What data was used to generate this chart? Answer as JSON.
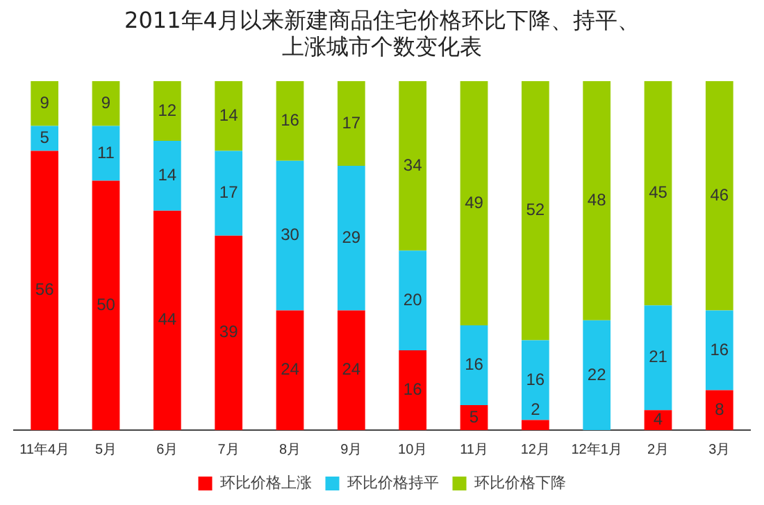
{
  "chart_data": {
    "type": "bar",
    "title": "2011年4月以来新建商品住宅价格环比下降、持平、上涨城市个数变化表",
    "categories": [
      "11年4月",
      "5月",
      "6月",
      "7月",
      "8月",
      "9月",
      "10月",
      "11月",
      "12月",
      "12年1月",
      "2月",
      "3月"
    ],
    "series": [
      {
        "name": "环比价格上涨",
        "color": "#ff0000",
        "values": [
          56,
          50,
          44,
          39,
          24,
          24,
          16,
          5,
          2,
          0,
          4,
          8
        ],
        "value_labels": [
          "56",
          "50",
          "44",
          "39",
          "24",
          "24",
          "16",
          "5",
          "2",
          null,
          "4",
          "8"
        ]
      },
      {
        "name": "环比价格持平",
        "color": "#22c8ee",
        "values": [
          5,
          11,
          14,
          17,
          30,
          29,
          20,
          16,
          16,
          22,
          21,
          16
        ],
        "value_labels": [
          "5",
          "11",
          "14",
          "17",
          "30",
          "29",
          "20",
          "16",
          "16",
          "22",
          "21",
          "16"
        ]
      },
      {
        "name": "环比价格下降",
        "color": "#99cc00",
        "values": [
          9,
          9,
          12,
          14,
          16,
          17,
          34,
          49,
          52,
          48,
          45,
          46
        ],
        "value_labels": [
          "9",
          "9",
          "12",
          "14",
          "16",
          "17",
          "34",
          "49",
          "52",
          "48",
          "45",
          "46"
        ]
      }
    ],
    "stacked": true,
    "ylim": [
      0,
      70
    ],
    "tick_labels": "x",
    "grid": false,
    "legend": "bottom"
  }
}
